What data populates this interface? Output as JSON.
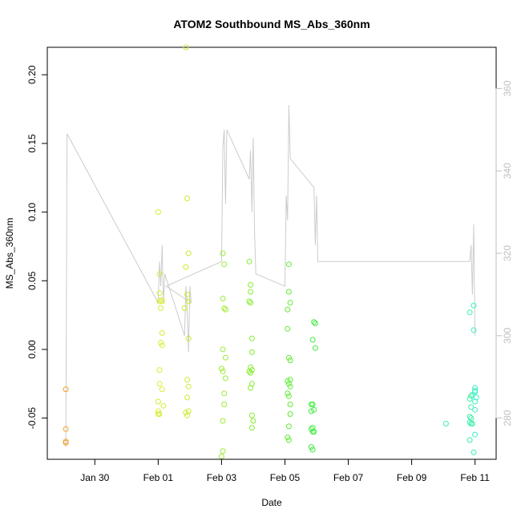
{
  "chart_data": {
    "type": "scatter",
    "title": "ATOM2 Southbound MS_Abs_360nm",
    "xlabel": "Date",
    "ylabel": "MS_Abs_360nm",
    "x_unit": "days",
    "xlim": [
      "Jan 28 12:00",
      "Feb 11 16:00"
    ],
    "ylim": [
      -0.08,
      0.22
    ],
    "y2lim": [
      270,
      370
    ],
    "x_ticks": [
      {
        "label": "Jan 30",
        "value": "Jan 30"
      },
      {
        "label": "Feb 01",
        "value": "Feb 01"
      },
      {
        "label": "Feb 03",
        "value": "Feb 03"
      },
      {
        "label": "Feb 05",
        "value": "Feb 05"
      },
      {
        "label": "Feb 07",
        "value": "Feb 07"
      },
      {
        "label": "Feb 09",
        "value": "Feb 09"
      },
      {
        "label": "Feb 11",
        "value": "Feb 11"
      }
    ],
    "y_ticks": [
      {
        "label": "-0.05",
        "value": -0.05
      },
      {
        "label": "0.00",
        "value": 0.0
      },
      {
        "label": "0.05",
        "value": 0.05
      },
      {
        "label": "0.10",
        "value": 0.1
      },
      {
        "label": "0.15",
        "value": 0.15
      },
      {
        "label": "0.20",
        "value": 0.2
      }
    ],
    "y2_ticks": [
      {
        "label": "280",
        "value": 280
      },
      {
        "label": "300",
        "value": 300
      },
      {
        "label": "320",
        "value": 320
      },
      {
        "label": "340",
        "value": 340
      },
      {
        "label": "360",
        "value": 360
      }
    ],
    "grid": false,
    "point_groups": [
      {
        "color": "#f0a030",
        "points": [
          [
            "Jan 29 02:00",
            -0.029
          ],
          [
            "Jan 29 02:00",
            -0.058
          ],
          [
            "Jan 29 02:00",
            -0.067
          ],
          [
            "Jan 29 02:00",
            -0.068
          ]
        ]
      },
      {
        "color": "#d8ec30",
        "points": [
          [
            "Feb 01 00:00",
            0.1
          ],
          [
            "Feb 01 01:00",
            0.055
          ],
          [
            "Feb 01 01:00",
            0.041
          ],
          [
            "Feb 01 02:00",
            0.036
          ],
          [
            "Feb 01 01:00",
            0.035
          ],
          [
            "Feb 01 03:00",
            0.035
          ],
          [
            "Feb 01 02:00",
            0.03
          ],
          [
            "Feb 01 03:00",
            0.012
          ],
          [
            "Feb 01 02:00",
            0.005
          ],
          [
            "Feb 01 03:00",
            0.003
          ],
          [
            "Feb 01 01:00",
            -0.015
          ],
          [
            "Feb 01 01:00",
            -0.025
          ],
          [
            "Feb 01 03:00",
            -0.029
          ],
          [
            "Feb 01 00:00",
            -0.038
          ],
          [
            "Feb 01 04:00",
            -0.041
          ],
          [
            "Feb 01 00:00",
            -0.045
          ],
          [
            "Feb 01 01:00",
            -0.047
          ],
          [
            "Feb 01 00:00",
            -0.047
          ]
        ]
      },
      {
        "color": "#c8ec30",
        "points": [
          [
            "Feb 01 21:00",
            0.22
          ],
          [
            "Feb 01 22:00",
            0.11
          ],
          [
            "Feb 01 23:00",
            0.07
          ],
          [
            "Feb 01 21:00",
            0.06
          ],
          [
            "Feb 01 22:00",
            0.04
          ],
          [
            "Feb 01 23:00",
            0.035
          ],
          [
            "Feb 01 20:00",
            0.03
          ],
          [
            "Feb 01 23:00",
            0.008
          ],
          [
            "Feb 01 22:00",
            -0.022
          ],
          [
            "Feb 01 23:00",
            -0.027
          ],
          [
            "Feb 01 22:00",
            -0.035
          ],
          [
            "Feb 01 23:00",
            -0.045
          ],
          [
            "Feb 01 21:00",
            -0.046
          ],
          [
            "Feb 01 22:00",
            -0.048
          ]
        ]
      },
      {
        "color": "#9cec30",
        "points": [
          [
            "Feb 03 01:00",
            0.07
          ],
          [
            "Feb 03 02:00",
            0.062
          ],
          [
            "Feb 03 01:00",
            0.037
          ],
          [
            "Feb 03 02:00",
            0.03
          ],
          [
            "Feb 03 03:00",
            0.029
          ],
          [
            "Feb 03 01:00",
            0.0
          ],
          [
            "Feb 03 03:00",
            -0.006
          ],
          [
            "Feb 03 00:00",
            -0.014
          ],
          [
            "Feb 03 01:00",
            -0.016
          ],
          [
            "Feb 03 03:00",
            -0.021
          ],
          [
            "Feb 03 02:00",
            -0.032
          ],
          [
            "Feb 03 02:00",
            -0.04
          ],
          [
            "Feb 03 01:00",
            -0.052
          ],
          [
            "Feb 03 01:00",
            -0.074
          ],
          [
            "Feb 03 00:00",
            -0.078
          ]
        ]
      },
      {
        "color": "#84ec30",
        "points": [
          [
            "Feb 03 21:00",
            0.064
          ],
          [
            "Feb 03 22:00",
            0.047
          ],
          [
            "Feb 03 22:00",
            0.042
          ],
          [
            "Feb 03 21:00",
            0.035
          ],
          [
            "Feb 03 22:00",
            0.034
          ],
          [
            "Feb 03 23:00",
            0.008
          ],
          [
            "Feb 03 23:00",
            -0.002
          ],
          [
            "Feb 03 22:00",
            -0.013
          ],
          [
            "Feb 03 23:00",
            -0.015
          ],
          [
            "Feb 03 21:00",
            -0.016
          ],
          [
            "Feb 03 22:00",
            -0.017
          ],
          [
            "Feb 03 23:00",
            -0.025
          ],
          [
            "Feb 03 22:00",
            -0.028
          ],
          [
            "Feb 03 23:00",
            -0.048
          ],
          [
            "Feb 04 00:00",
            -0.052
          ],
          [
            "Feb 03 23:00",
            -0.057
          ]
        ]
      },
      {
        "color": "#5eec30",
        "points": [
          [
            "Feb 05 03:00",
            0.062
          ],
          [
            "Feb 05 03:00",
            0.042
          ],
          [
            "Feb 05 04:00",
            0.034
          ],
          [
            "Feb 05 02:00",
            0.029
          ],
          [
            "Feb 05 02:00",
            0.015
          ],
          [
            "Feb 05 03:00",
            -0.006
          ],
          [
            "Feb 05 04:00",
            -0.008
          ],
          [
            "Feb 05 02:00",
            -0.023
          ],
          [
            "Feb 05 04:00",
            -0.022
          ],
          [
            "Feb 05 03:00",
            -0.025
          ],
          [
            "Feb 05 04:00",
            -0.027
          ],
          [
            "Feb 05 02:00",
            -0.032
          ],
          [
            "Feb 05 03:00",
            -0.034
          ],
          [
            "Feb 05 04:00",
            -0.04
          ],
          [
            "Feb 05 04:00",
            -0.047
          ],
          [
            "Feb 05 03:00",
            -0.056
          ],
          [
            "Feb 05 02:00",
            -0.064
          ],
          [
            "Feb 05 03:00",
            -0.066
          ]
        ]
      },
      {
        "color": "#3cec3c",
        "points": [
          [
            "Feb 05 22:00",
            0.02
          ],
          [
            "Feb 05 23:00",
            0.019
          ],
          [
            "Feb 05 21:00",
            0.007
          ],
          [
            "Feb 05 23:00",
            0.001
          ],
          [
            "Feb 05 20:00",
            -0.04
          ],
          [
            "Feb 05 21:00",
            -0.04
          ],
          [
            "Feb 05 22:00",
            -0.044
          ],
          [
            "Feb 05 20:00",
            -0.045
          ],
          [
            "Feb 05 21:00",
            -0.057
          ],
          [
            "Feb 05 20:00",
            -0.058
          ],
          [
            "Feb 05 22:00",
            -0.06
          ],
          [
            "Feb 05 21:00",
            -0.06
          ],
          [
            "Feb 05 20:00",
            -0.071
          ],
          [
            "Feb 05 21:00",
            -0.073
          ]
        ]
      },
      {
        "color": "#3cf0a8",
        "points": [
          [
            "Feb 10 02:00",
            -0.054
          ],
          [
            "Feb 10 20:00",
            0.027
          ],
          [
            "Feb 10 22:00",
            -0.033
          ],
          [
            "Feb 10 20:00",
            -0.036
          ],
          [
            "Feb 10 21:00",
            -0.034
          ],
          [
            "Feb 10 21:00",
            -0.042
          ],
          [
            "Feb 10 20:00",
            -0.049
          ],
          [
            "Feb 10 21:00",
            -0.05
          ],
          [
            "Feb 10 20:00",
            -0.053
          ],
          [
            "Feb 10 21:00",
            -0.054
          ],
          [
            "Feb 10 22:00",
            -0.054
          ],
          [
            "Feb 10 20:00",
            -0.066
          ],
          [
            "Feb 10 23:00",
            -0.075
          ]
        ]
      },
      {
        "color": "#3cf0c8",
        "points": [
          [
            "Feb 10 23:00",
            0.032
          ],
          [
            "Feb 10 23:00",
            0.014
          ],
          [
            "Feb 11 00:00",
            -0.028
          ],
          [
            "Feb 11 00:00",
            -0.03
          ],
          [
            "Feb 11 00:00",
            -0.031
          ],
          [
            "Feb 11 01:00",
            -0.035
          ],
          [
            "Feb 11 00:00",
            -0.038
          ],
          [
            "Feb 11 00:00",
            -0.044
          ],
          [
            "Feb 11 00:00",
            -0.062
          ]
        ]
      }
    ],
    "line_series": {
      "axis": "right",
      "color": "#cccccc",
      "points": [
        [
          "Jan 29 02:00",
          273
        ],
        [
          "Jan 29 03:00",
          349
        ],
        [
          "Feb 01 00:00",
          308
        ],
        [
          "Feb 01 01:00",
          318
        ],
        [
          "Feb 01 02:00",
          312
        ],
        [
          "Feb 01 03:00",
          322
        ],
        [
          "Feb 01 04:00",
          308
        ],
        [
          "Feb 01 05:00",
          315
        ],
        [
          "Feb 01 20:00",
          300
        ],
        [
          "Feb 01 21:00",
          312
        ],
        [
          "Feb 01 22:00",
          306
        ],
        [
          "Feb 01 23:00",
          296
        ],
        [
          "Feb 02 00:00",
          312
        ],
        [
          "Feb 02 01:00",
          308
        ],
        [
          "Feb 01 06:00",
          312
        ],
        [
          "Feb 03 00:00",
          318
        ],
        [
          "Feb 03 01:00",
          346
        ],
        [
          "Feb 03 02:00",
          350
        ],
        [
          "Feb 03 03:00",
          332
        ],
        [
          "Feb 03 04:00",
          350
        ],
        [
          "Feb 03 21:00",
          338
        ],
        [
          "Feb 03 22:00",
          345
        ],
        [
          "Feb 03 23:00",
          330
        ],
        [
          "Feb 04 00:00",
          348
        ],
        [
          "Feb 04 01:00",
          325
        ],
        [
          "Feb 04 02:00",
          315
        ],
        [
          "Feb 05 00:00",
          312
        ],
        [
          "Feb 05 01:00",
          334
        ],
        [
          "Feb 05 02:00",
          328
        ],
        [
          "Feb 05 03:00",
          356
        ],
        [
          "Feb 05 04:00",
          343
        ],
        [
          "Feb 05 22:00",
          336
        ],
        [
          "Feb 05 23:00",
          322
        ],
        [
          "Feb 06 00:00",
          334
        ],
        [
          "Feb 06 01:00",
          318
        ],
        [
          "Feb 10 20:00",
          318
        ],
        [
          "Feb 10 21:00",
          322
        ],
        [
          "Feb 10 22:00",
          310
        ],
        [
          "Feb 10 23:00",
          327
        ],
        [
          "Feb 11 00:00",
          300
        ]
      ]
    }
  }
}
